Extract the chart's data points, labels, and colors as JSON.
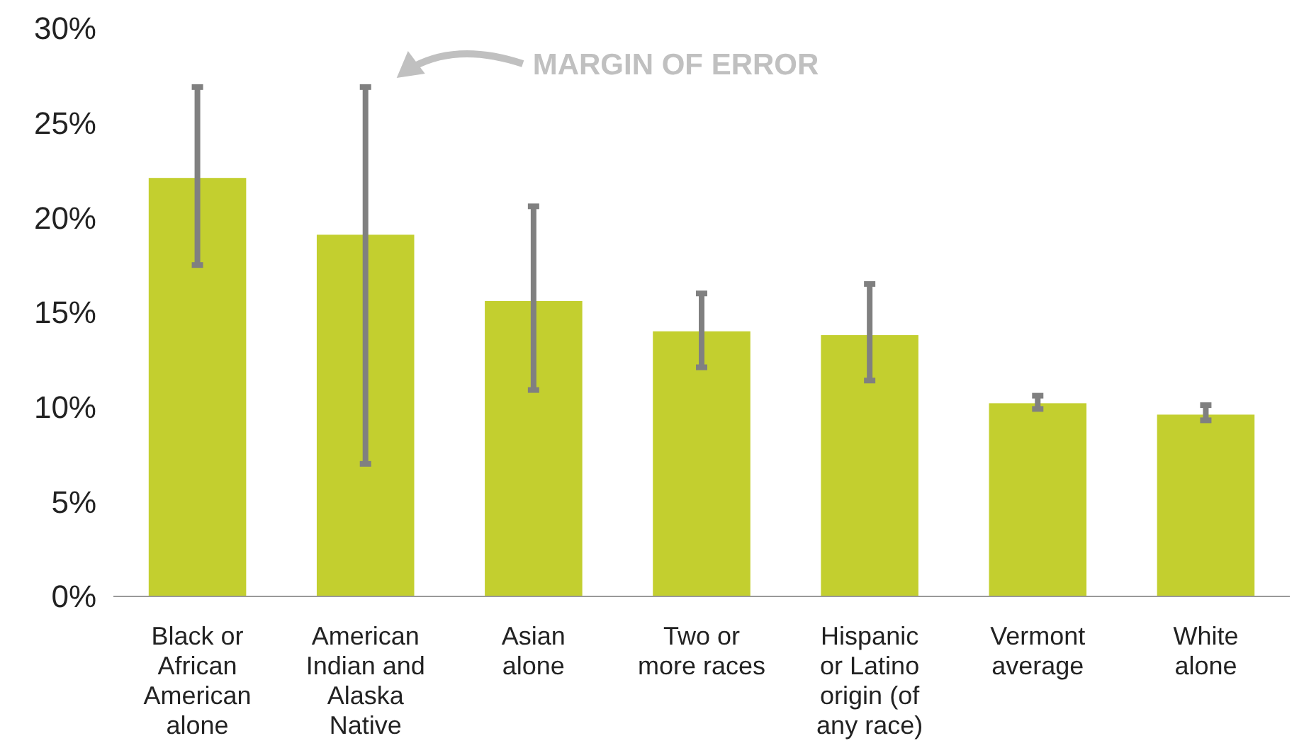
{
  "chart_data": {
    "type": "bar",
    "categories": [
      "Black or African American alone",
      "American Indian and Alaska Native",
      "Asian alone",
      "Two or more races",
      "Hispanic or Latino origin (of any race)",
      "Vermont average",
      "White alone"
    ],
    "values": [
      22.1,
      19.1,
      15.6,
      14.0,
      13.8,
      10.2,
      9.6
    ],
    "errors": [
      [
        17.5,
        26.9
      ],
      [
        7.0,
        26.9
      ],
      [
        10.9,
        20.6
      ],
      [
        12.1,
        16.0
      ],
      [
        11.4,
        16.5
      ],
      [
        9.9,
        10.6
      ],
      [
        9.3,
        10.1
      ]
    ],
    "color": "#c3cf2f",
    "ylim": [
      0,
      30
    ],
    "yticks": [
      {
        "value": 0,
        "label": "0%"
      },
      {
        "value": 5,
        "label": "5%"
      },
      {
        "value": 10,
        "label": "10%"
      },
      {
        "value": 15,
        "label": "15%"
      },
      {
        "value": 20,
        "label": "20%"
      },
      {
        "value": 25,
        "label": "25%"
      },
      {
        "value": 30,
        "label": "30%"
      }
    ],
    "annotations": [
      "MARGIN OF ERROR"
    ]
  }
}
